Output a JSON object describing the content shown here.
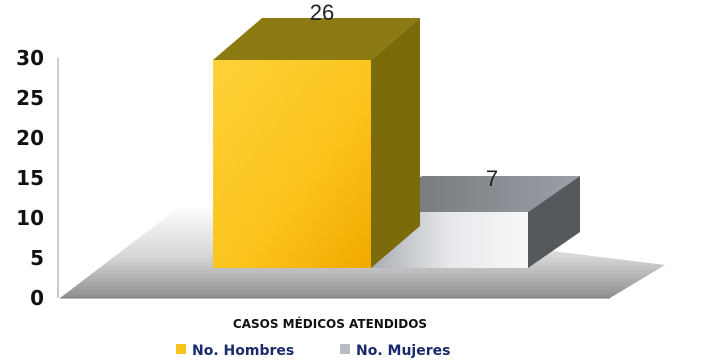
{
  "chart_data": {
    "type": "bar",
    "title": "",
    "xlabel": "",
    "ylabel": "",
    "categories": [
      "CASOS MÉDICOS ATENDIDOS"
    ],
    "series": [
      {
        "name": "No. Hombres",
        "values": [
          26
        ],
        "color": "#f8c21a"
      },
      {
        "name": "No. Mujeres",
        "values": [
          7
        ],
        "color": "#b8bcc2"
      }
    ],
    "ylim": [
      0,
      30
    ],
    "yticks": [
      "0",
      "5",
      "10",
      "15",
      "20",
      "25",
      "30"
    ],
    "data_labels": [
      "26",
      "7"
    ],
    "legend_position": "bottom",
    "style": "3d"
  }
}
